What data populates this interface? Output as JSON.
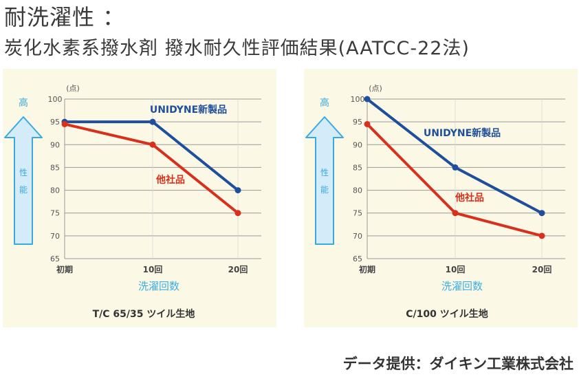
{
  "heading": {
    "line1": "耐洗濯性 ：",
    "line2": "炭化水素系撥水剤 撥水耐久性評価結果(AATCC-22法)"
  },
  "credit": "データ提供：ダイキン工業株式会社",
  "chart_data": [
    {
      "type": "line",
      "title": "",
      "subtitle": "T/C 65/35 ツイル生地",
      "xlabel": "洗濯回数",
      "ylabel": "(点)",
      "categories": [
        "初期",
        "10回",
        "20回"
      ],
      "ylim": [
        65,
        100
      ],
      "yticks": [
        65,
        70,
        75,
        80,
        85,
        90,
        95,
        100
      ],
      "grid": true,
      "arrow_label_top": "高",
      "arrow_label_mid": "性能",
      "series": [
        {
          "name": "UNIDYNE新製品",
          "color": "#1f4f9c",
          "values": [
            95,
            95,
            80
          ]
        },
        {
          "name": "他社品",
          "color": "#d8301c",
          "values": [
            94.5,
            90,
            75
          ]
        }
      ]
    },
    {
      "type": "line",
      "title": "",
      "subtitle": "C/100 ツイル生地",
      "xlabel": "洗濯回数",
      "ylabel": "(点)",
      "categories": [
        "初期",
        "10回",
        "20回"
      ],
      "ylim": [
        65,
        100
      ],
      "yticks": [
        65,
        70,
        75,
        80,
        85,
        90,
        95,
        100
      ],
      "grid": true,
      "arrow_label_top": "高",
      "arrow_label_mid": "性能",
      "series": [
        {
          "name": "UNIDYNE新製品",
          "color": "#1f4f9c",
          "values": [
            100,
            85,
            75
          ]
        },
        {
          "name": "他社品",
          "color": "#d8301c",
          "values": [
            94.5,
            75,
            70
          ]
        }
      ]
    }
  ]
}
